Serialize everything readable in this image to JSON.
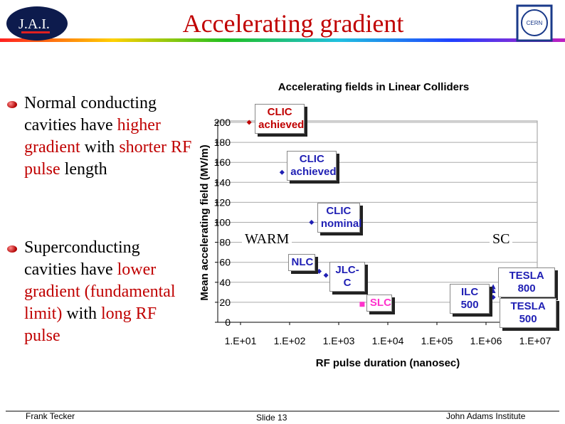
{
  "header": {
    "title": "Accelerating gradient",
    "left_logo": "J.A.I.",
    "right_logo": "CERN"
  },
  "bullets": [
    [
      "Normal conducting cavities have ",
      "higher gradient",
      " with ",
      "shorter RF pulse",
      " length"
    ],
    [
      "Superconducting cavities have ",
      "lower gradient (fundamental limit)",
      " with ",
      "long RF pulse"
    ]
  ],
  "footer": {
    "author": "Frank Tecker",
    "slide": "Slide 13",
    "institute": "John Adams Institute"
  },
  "chart_data": {
    "type": "scatter",
    "title": "Accelerating fields in Linear Colliders",
    "x_label": "RF pulse duration (nanosec)",
    "y_label": "Mean accelerating field (MV/m)",
    "log_x": true,
    "grid": true,
    "xlim": [
      10,
      10000000
    ],
    "xticks": [
      {
        "value": 10,
        "label": "1.E+01"
      },
      {
        "value": 100,
        "label": "1.E+02"
      },
      {
        "value": 1000,
        "label": "1.E+03"
      },
      {
        "value": 10000,
        "label": "1.E+04"
      },
      {
        "value": 100000,
        "label": "1.E+05"
      },
      {
        "value": 1000000,
        "label": "1.E+06"
      },
      {
        "value": 10000000,
        "label": "1.E+07"
      }
    ],
    "ylim": [
      0,
      200
    ],
    "yticks": [
      0,
      20,
      40,
      60,
      80,
      100,
      120,
      140,
      160,
      180,
      200
    ],
    "points": [
      {
        "label": "CLIC achieved",
        "x": 15,
        "y": 200,
        "color": "#c00000",
        "marker": "diamond"
      },
      {
        "label": "CLIC achieved",
        "x": 70,
        "y": 150,
        "color": "#1f1fb4",
        "marker": "diamond"
      },
      {
        "label": "CLIC nominal",
        "x": 280,
        "y": 100,
        "color": "#1f1fb4",
        "marker": "diamond"
      },
      {
        "label": "NLC",
        "x": 400,
        "y": 51,
        "color": "#1f1fb4",
        "marker": "diamond"
      },
      {
        "label": "JLC-C",
        "x": 550,
        "y": 47,
        "color": "#1f1fb4",
        "marker": "diamond"
      },
      {
        "label": "SLC",
        "x": 3000,
        "y": 18,
        "color": "#ff33cc",
        "marker": "square"
      },
      {
        "label": "TESLA 800",
        "x": 1400000,
        "y": 35,
        "color": "#1f1fb4",
        "marker": "triangle"
      },
      {
        "label": "ILC 500",
        "x": 1400000,
        "y": 31,
        "color": "#1f1fb4",
        "marker": "triangle"
      },
      {
        "label": "TESLA 500",
        "x": 1400000,
        "y": 25,
        "color": "#1f1fb4",
        "marker": "diamond"
      }
    ],
    "annotations": [
      "WARM",
      "SC"
    ]
  }
}
